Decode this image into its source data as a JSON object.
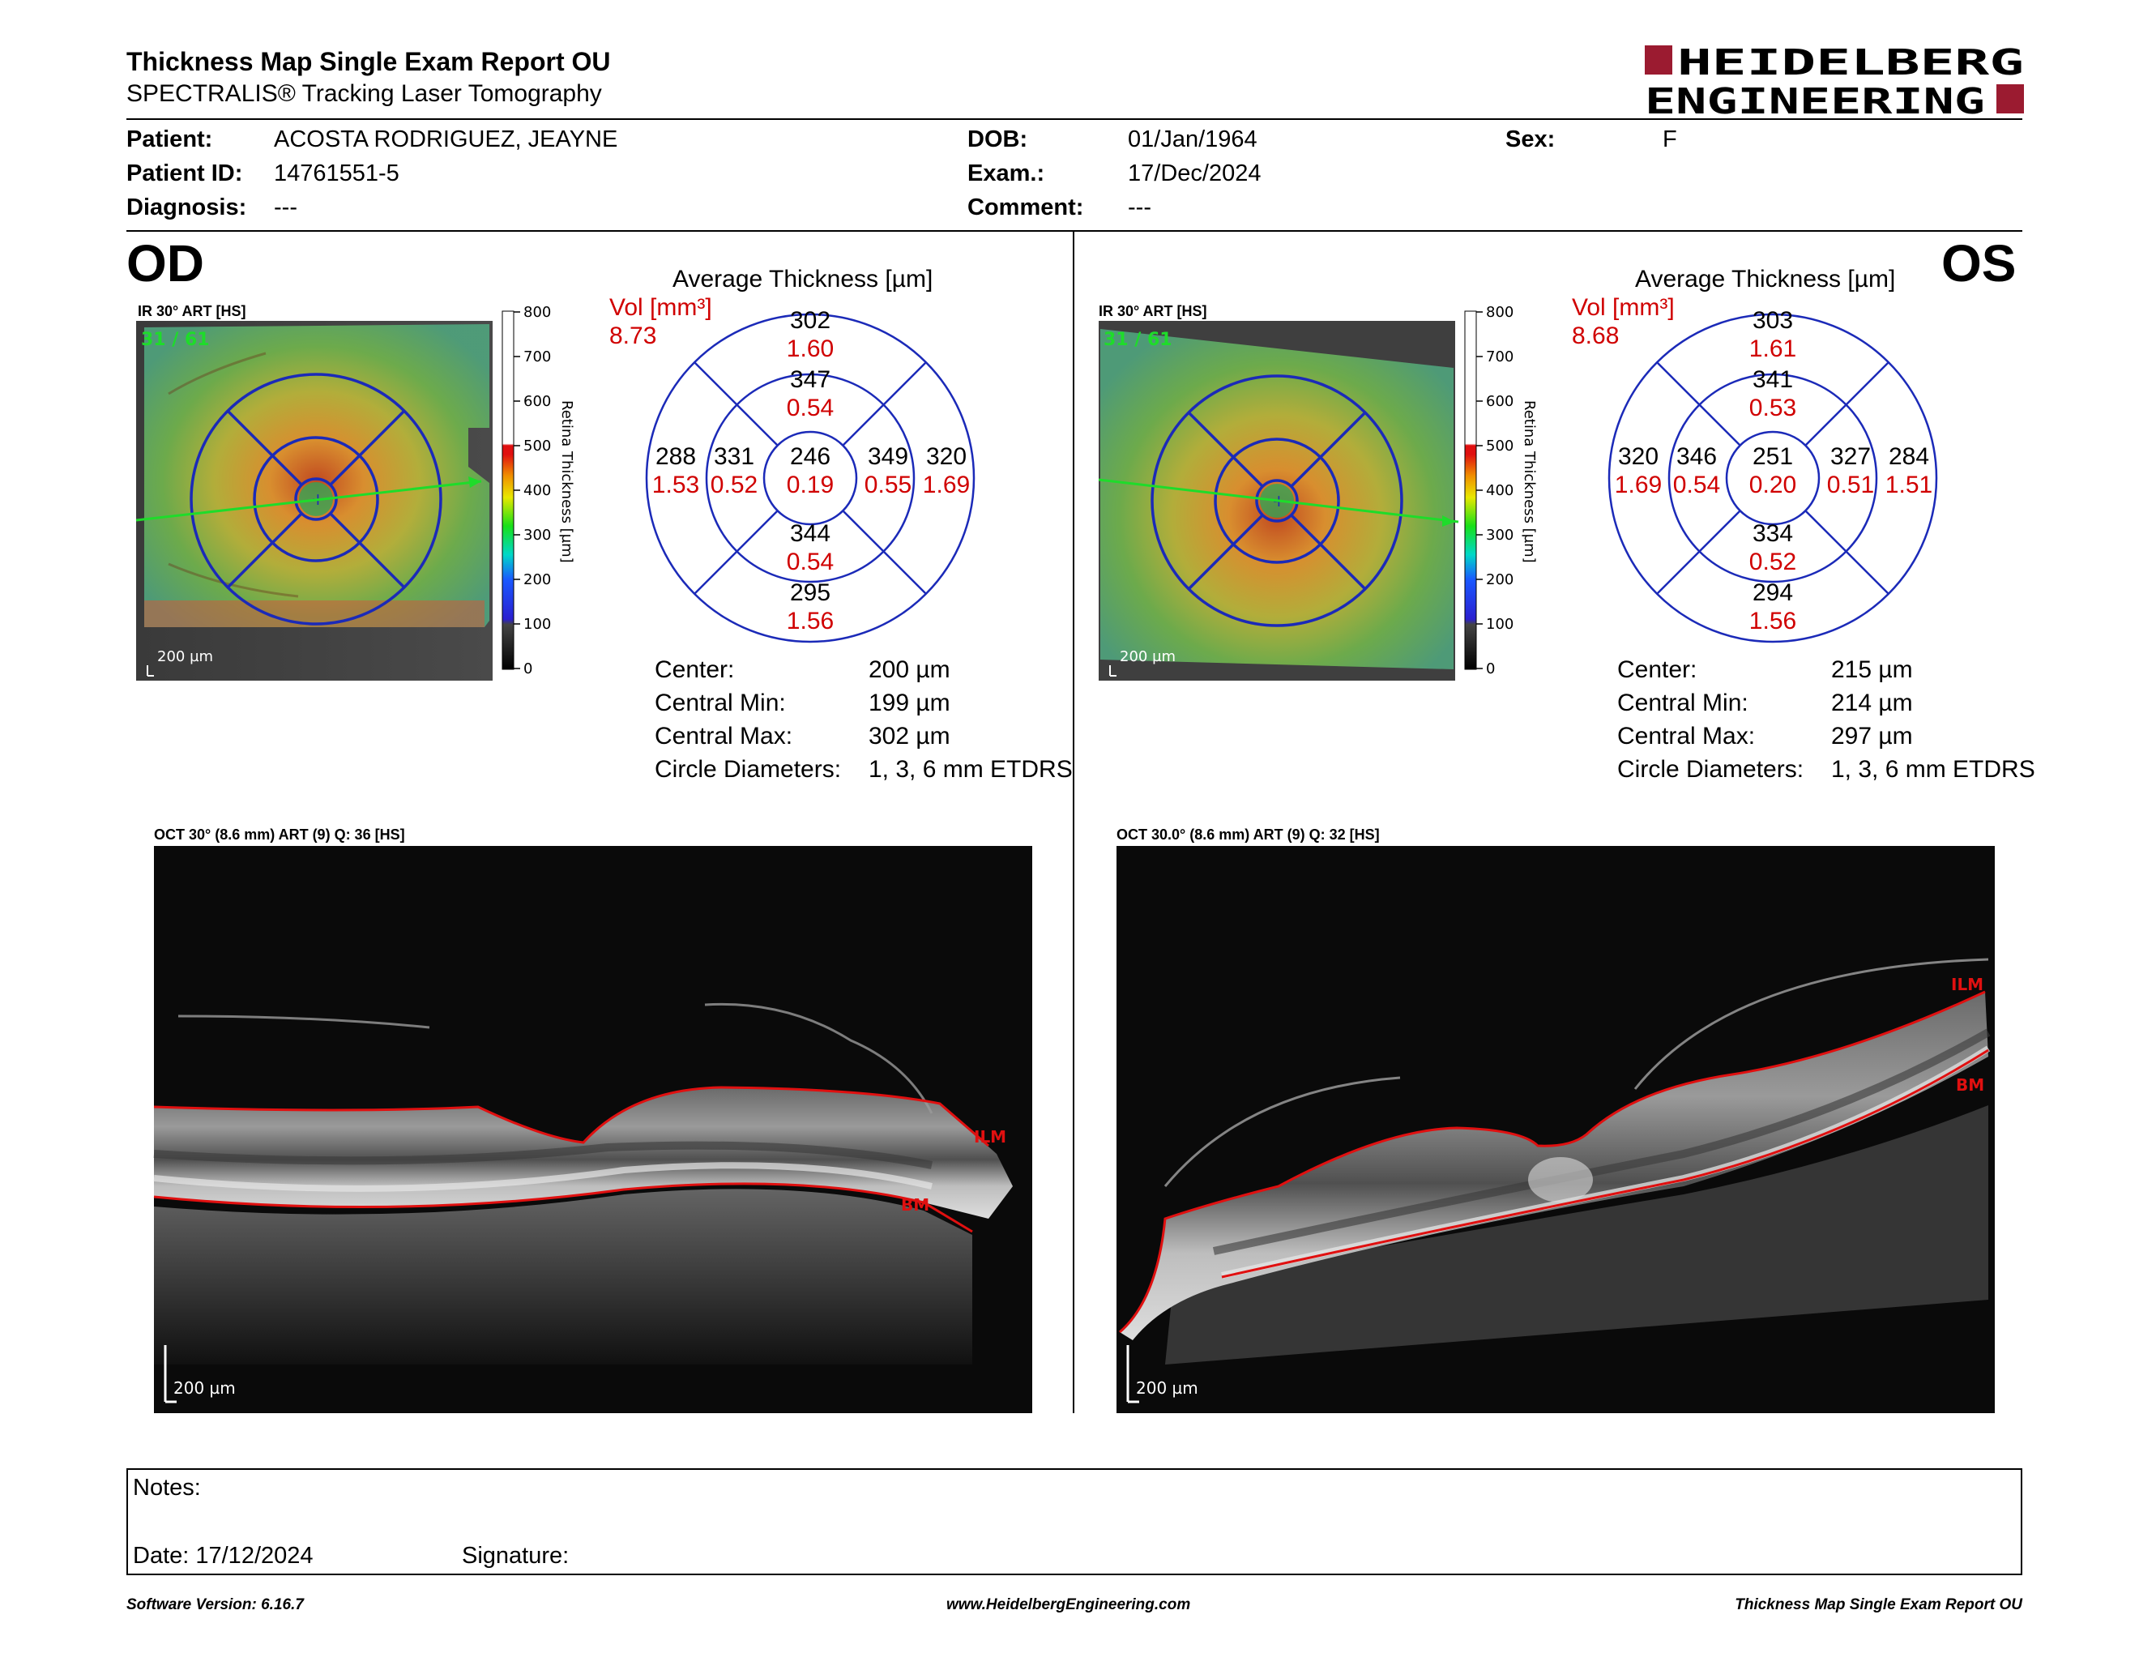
{
  "header": {
    "title": "Thickness Map Single Exam Report OU",
    "subtitle": "SPECTRALIS® Tracking Laser Tomography",
    "logo_line1": "HEIDELBERG",
    "logo_line2": "ENGINEERING",
    "brand_color": "#9b1b30"
  },
  "patient": {
    "patient_label": "Patient:",
    "patient_value": "ACOSTA RODRIGUEZ, JEAYNE",
    "id_label": "Patient ID:",
    "id_value": "14761551-5",
    "diagnosis_label": "Diagnosis:",
    "diagnosis_value": "---",
    "dob_label": "DOB:",
    "dob_value": "01/Jan/1964",
    "exam_label": "Exam.:",
    "exam_value": "17/Dec/2024",
    "comment_label": "Comment:",
    "comment_value": "---",
    "sex_label": "Sex:",
    "sex_value": "F"
  },
  "od": {
    "eye": "OD",
    "ir_label": "IR 30° ART [HS]",
    "ir_counter": "31 / 61",
    "scale": "200 µm",
    "colorbar_ticks": [
      "800",
      "700",
      "600",
      "500",
      "400",
      "300",
      "200",
      "100",
      "0"
    ],
    "colorbar_title": "Retina Thickness [µm]",
    "avg_title": "Average Thickness [µm]",
    "vol_label": "Vol [mm³]",
    "vol_total": "8.73",
    "sectors": {
      "center": {
        "t": "246",
        "v": "0.19"
      },
      "inner_sup": {
        "t": "347",
        "v": "0.54"
      },
      "inner_inf": {
        "t": "344",
        "v": "0.54"
      },
      "inner_left": {
        "t": "331",
        "v": "0.52"
      },
      "inner_right": {
        "t": "349",
        "v": "0.55"
      },
      "outer_sup": {
        "t": "302",
        "v": "1.60"
      },
      "outer_inf": {
        "t": "295",
        "v": "1.56"
      },
      "outer_left": {
        "t": "288",
        "v": "1.53"
      },
      "outer_right": {
        "t": "320",
        "v": "1.69"
      }
    },
    "stats": {
      "center_label": "Center:",
      "center_value": "200 µm",
      "min_label": "Central Min:",
      "min_value": "199 µm",
      "max_label": "Central Max:",
      "max_value": "302 µm",
      "diam_label": "Circle Diameters:",
      "diam_value": "1, 3, 6 mm ETDRS"
    },
    "oct_label": "OCT 30° (8.6 mm) ART (9) Q: 36 [HS]",
    "oct_scale": "200 µm",
    "ilm": "ILM",
    "bm": "BM"
  },
  "os": {
    "eye": "OS",
    "ir_label": "IR 30° ART [HS]",
    "ir_counter": "31 / 61",
    "scale": "200 µm",
    "colorbar_ticks": [
      "800",
      "700",
      "600",
      "500",
      "400",
      "300",
      "200",
      "100",
      "0"
    ],
    "colorbar_title": "Retina Thickness [µm]",
    "avg_title": "Average Thickness [µm]",
    "vol_label": "Vol [mm³]",
    "vol_total": "8.68",
    "sectors": {
      "center": {
        "t": "251",
        "v": "0.20"
      },
      "inner_sup": {
        "t": "341",
        "v": "0.53"
      },
      "inner_inf": {
        "t": "334",
        "v": "0.52"
      },
      "inner_left": {
        "t": "346",
        "v": "0.54"
      },
      "inner_right": {
        "t": "327",
        "v": "0.51"
      },
      "outer_sup": {
        "t": "303",
        "v": "1.61"
      },
      "outer_inf": {
        "t": "294",
        "v": "1.56"
      },
      "outer_left": {
        "t": "320",
        "v": "1.69"
      },
      "outer_right": {
        "t": "284",
        "v": "1.51"
      }
    },
    "stats": {
      "center_label": "Center:",
      "center_value": "215 µm",
      "min_label": "Central Min:",
      "min_value": "214 µm",
      "max_label": "Central Max:",
      "max_value": "297 µm",
      "diam_label": "Circle Diameters:",
      "diam_value": "1, 3, 6 mm ETDRS"
    },
    "oct_label": "OCT 30.0° (8.6 mm) ART (9) Q: 32 [HS]",
    "oct_scale": "200 µm",
    "ilm": "ILM",
    "bm": "BM"
  },
  "notes": {
    "notes_label": "Notes:",
    "date_label": "Date: 17/12/2024",
    "signature_label": "Signature:"
  },
  "footer": {
    "software": "Software Version: 6.16.7",
    "website": "www.HeidelbergEngineering.com",
    "report_name": "Thickness Map Single Exam Report OU"
  }
}
